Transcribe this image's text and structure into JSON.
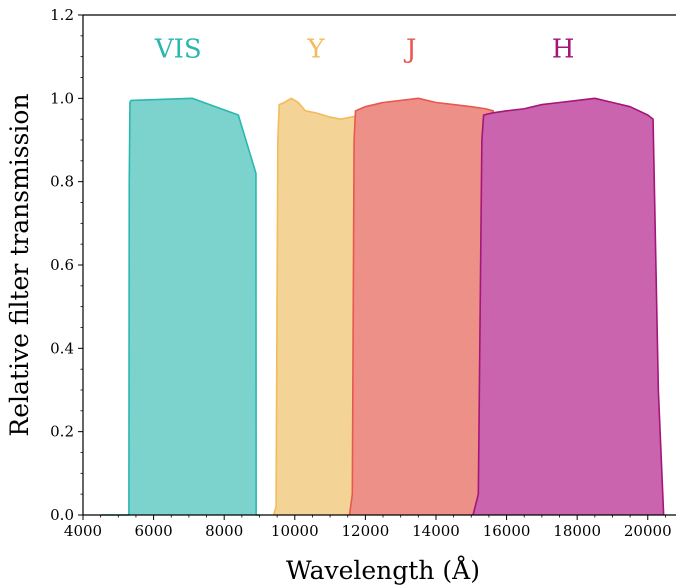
{
  "chart_data": {
    "type": "area",
    "xlabel": "Wavelength (Å)",
    "ylabel": "Relative filter transmission",
    "xlim": [
      4000,
      20800
    ],
    "ylim": [
      0,
      1.2
    ],
    "x_ticks": [
      4000,
      6000,
      8000,
      10000,
      12000,
      14000,
      16000,
      18000,
      20000
    ],
    "x_tick_labels": [
      "4000",
      "6000",
      "8000",
      "10000",
      "12000",
      "14000",
      "16000",
      "18000",
      "20000"
    ],
    "y_ticks": [
      0.0,
      0.2,
      0.4,
      0.6,
      0.8,
      1.0,
      1.2
    ],
    "y_tick_labels": [
      "0.0",
      "0.2",
      "0.4",
      "0.6",
      "0.8",
      "1.0",
      "1.2"
    ],
    "spines": "left, bottom, top",
    "grid": false,
    "legend": "none",
    "series": [
      {
        "name": "VIS",
        "color": "#2ab7b0",
        "fill": "#7cd3ce",
        "x": [
          4500,
          5300,
          5310,
          5330,
          5360,
          7100,
          8400,
          8900,
          8905,
          9000
        ],
        "y": [
          0.0,
          0.0,
          0.8,
          0.99,
          0.995,
          1.0,
          0.96,
          0.82,
          0.0,
          0.0
        ]
      },
      {
        "name": "Y",
        "color": "#f2bc5a",
        "fill": "#f4d396",
        "x": [
          9400,
          9470,
          9520,
          9560,
          9700,
          9900,
          10100,
          10300,
          10600,
          11000,
          11300,
          11600,
          11900,
          12080,
          12150,
          12250
        ],
        "y": [
          0.0,
          0.02,
          0.9,
          0.985,
          0.99,
          1.0,
          0.99,
          0.97,
          0.965,
          0.955,
          0.95,
          0.955,
          0.96,
          0.97,
          0.4,
          0.0
        ]
      },
      {
        "name": "J",
        "color": "#e8584f",
        "fill": "#ed9088",
        "x": [
          11550,
          11630,
          11680,
          11720,
          12000,
          12500,
          13000,
          13500,
          14000,
          14500,
          15000,
          15400,
          15620,
          15660,
          15720
        ],
        "y": [
          0.0,
          0.05,
          0.9,
          0.97,
          0.98,
          0.99,
          0.995,
          1.0,
          0.99,
          0.985,
          0.98,
          0.975,
          0.97,
          0.4,
          0.0
        ]
      },
      {
        "name": "H",
        "color": "#a3167a",
        "fill": "#cb64ae",
        "x": [
          15050,
          15200,
          15300,
          15350,
          15600,
          16000,
          16500,
          17000,
          17500,
          18000,
          18500,
          19000,
          19500,
          20000,
          20150,
          20300,
          20450
        ],
        "y": [
          0.0,
          0.05,
          0.9,
          0.96,
          0.965,
          0.97,
          0.975,
          0.985,
          0.99,
          0.995,
          1.0,
          0.99,
          0.98,
          0.96,
          0.95,
          0.3,
          0.0
        ]
      }
    ],
    "annotations": [
      {
        "text": "VIS",
        "x": 6700,
        "y": 1.12,
        "color": "#2ab7b0"
      },
      {
        "text": "Y",
        "x": 10600,
        "y": 1.12,
        "color": "#f2bc5a"
      },
      {
        "text": "J",
        "x": 13300,
        "y": 1.12,
        "color": "#e8584f"
      },
      {
        "text": "H",
        "x": 17600,
        "y": 1.12,
        "color": "#a3167a"
      }
    ]
  }
}
